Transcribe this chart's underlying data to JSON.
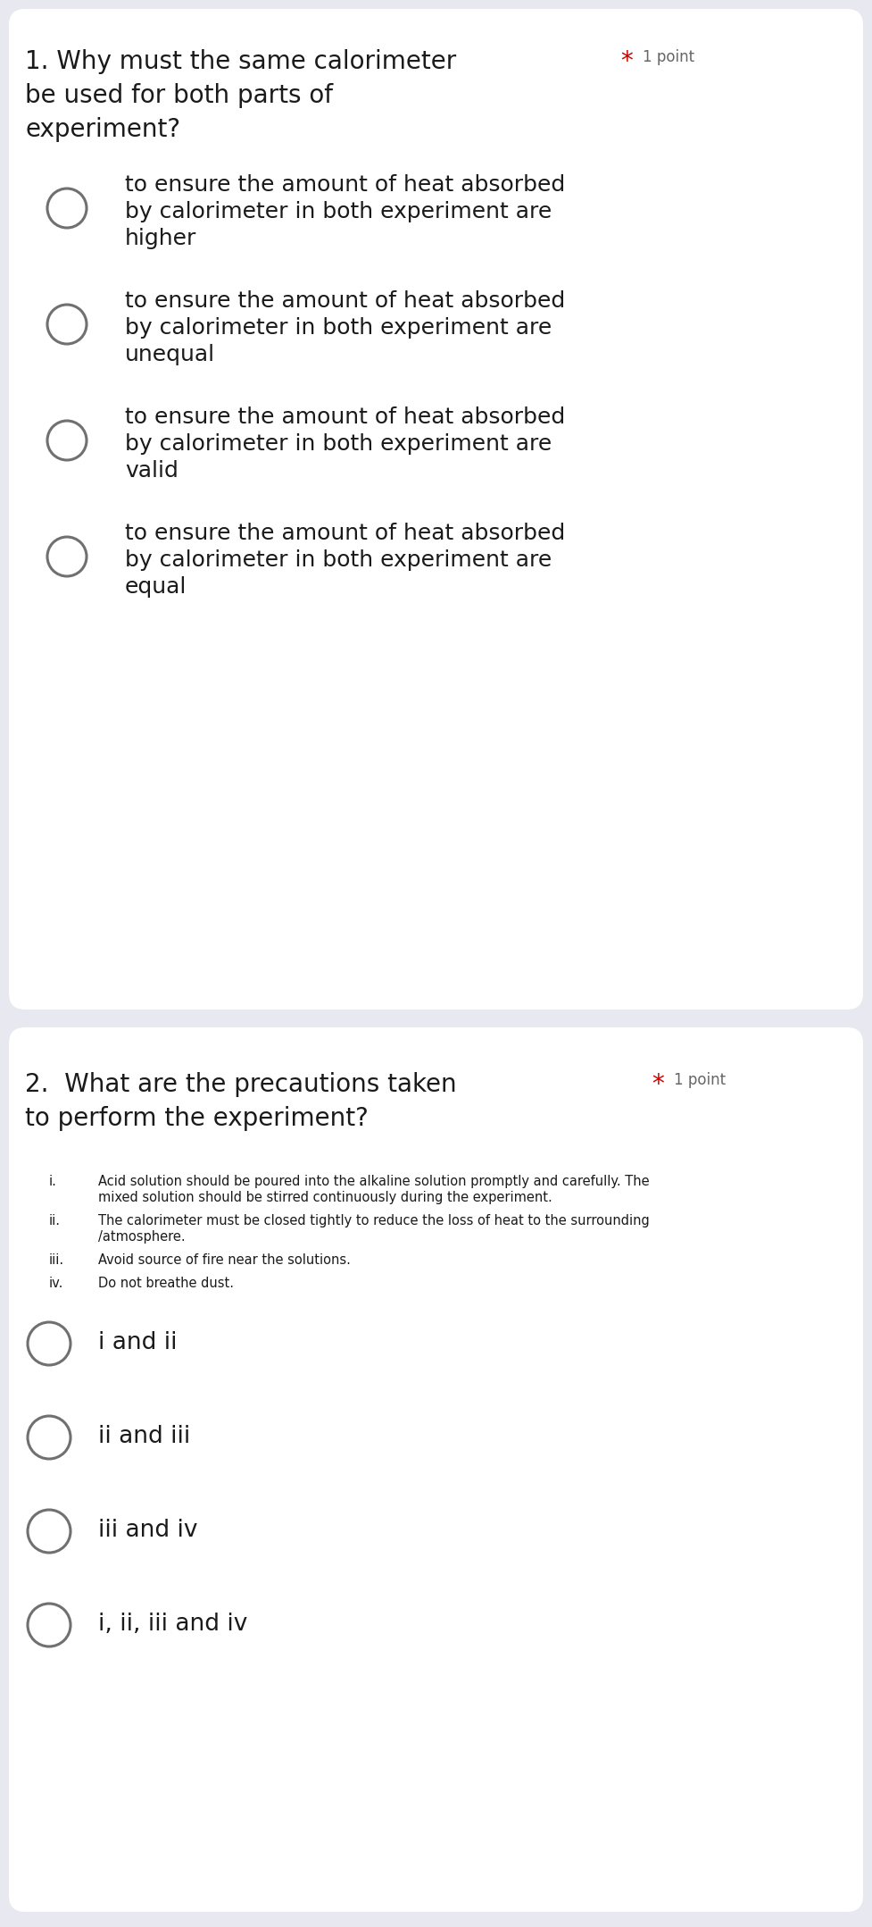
{
  "bg_color": "#e8e8f0",
  "card_color": "#ffffff",
  "q1": {
    "number": "1.",
    "text": "Why must the same calorimeter",
    "text2": "be used for both parts of",
    "text3": "experiment?",
    "required_star": "*",
    "points": "1 point",
    "options": [
      [
        "to ensure the amount of heat absorbed",
        "by calorimeter in both experiment are",
        "higher"
      ],
      [
        "to ensure the amount of heat absorbed",
        "by calorimeter in both experiment are",
        "unequal"
      ],
      [
        "to ensure the amount of heat absorbed",
        "by calorimeter in both experiment are",
        "valid"
      ],
      [
        "to ensure the amount of heat absorbed",
        "by calorimeter in both experiment are",
        "equal"
      ]
    ]
  },
  "q2": {
    "number": "2.",
    "text": "What are the precautions taken",
    "text2": "to perform the experiment?",
    "required_star": "*",
    "points": "1 point",
    "precautions": [
      [
        "i.",
        "Acid solution should be poured into the alkaline solution promptly and carefully. The",
        "mixed solution should be stirred continuously during the experiment."
      ],
      [
        "ii.",
        "The calorimeter must be closed tightly to reduce the loss of heat to the surrounding",
        "/atmosphere."
      ],
      [
        "iii.",
        "Avoid source of fire near the solutions."
      ],
      [
        "iv.",
        "Do not breathe dust."
      ]
    ],
    "options": [
      "i and ii",
      "ii and iii",
      "iii and iv",
      "i, ii, iii and iv"
    ]
  },
  "question_fontsize": 20,
  "points_fontsize": 12,
  "option_fontsize": 18,
  "small_option_fontsize": 19,
  "precaution_fontsize": 10.5,
  "star_color": "#cc0000",
  "text_color": "#1a1a1a",
  "gray_color": "#666666",
  "circle_edge_color": "#707070",
  "circle_lw": 2.2
}
